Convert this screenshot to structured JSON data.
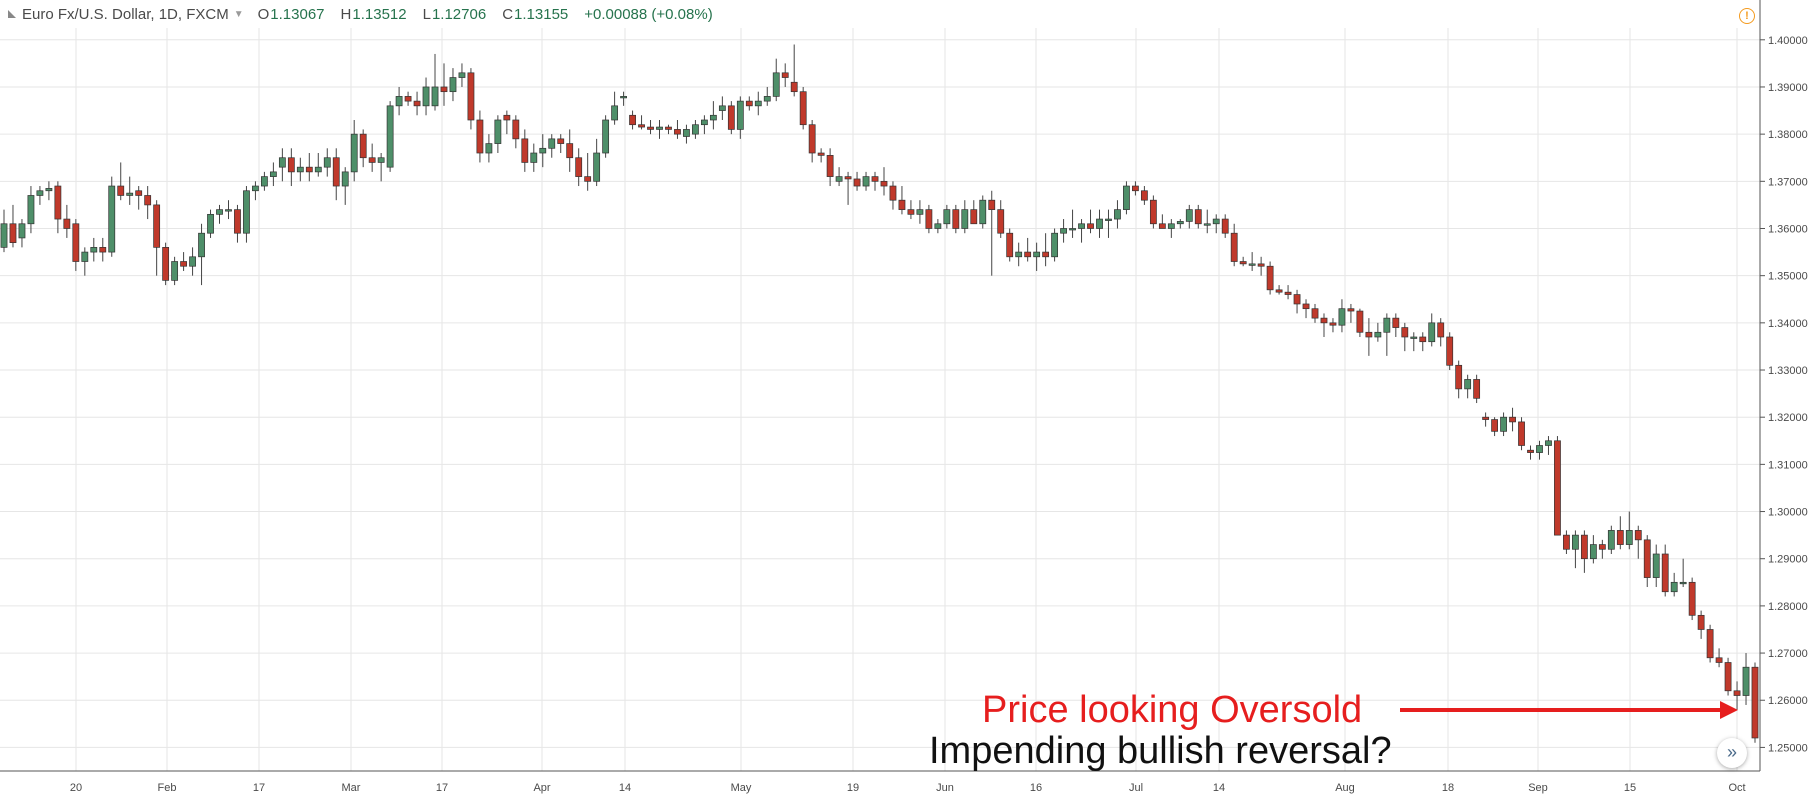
{
  "legend": {
    "symbol": "Euro Fx/U.S. Dollar, 1D, FXCM",
    "open_label": "O",
    "open": "1.13067",
    "high_label": "H",
    "high": "1.13512",
    "low_label": "L",
    "low": "1.12706",
    "close_label": "C",
    "close": "1.13155",
    "change": "+0.00088 (+0.08%)"
  },
  "icons": {
    "symbol": "triangle-icon",
    "alert": "alert-icon",
    "scroll": "double-chevron-right-icon"
  },
  "alert_glyph": "!",
  "scroll_glyph": "»",
  "colors": {
    "up": "#4e8f69",
    "down": "#c0392b",
    "annotation_red": "#e61e1e",
    "annotation_black": "#111111",
    "grid": "#e6e6e6"
  },
  "annotation": {
    "line1": "Price looking Oversold",
    "line2": "Impending bullish reversal?"
  },
  "chart_data": {
    "type": "candlestick",
    "ylim": [
      1.245,
      1.4025
    ],
    "y_ticks": [
      "1.40000",
      "1.39000",
      "1.38000",
      "1.37000",
      "1.36000",
      "1.35000",
      "1.34000",
      "1.33000",
      "1.32000",
      "1.31000",
      "1.30000",
      "1.29000",
      "1.28000",
      "1.27000",
      "1.26000",
      "1.25000"
    ],
    "x_tick_labels": [
      "20",
      "Feb",
      "17",
      "Mar",
      "17",
      "Apr",
      "14",
      "May",
      "19",
      "Jun",
      "16",
      "Jul",
      "14",
      "Aug",
      "18",
      "Sep",
      "15",
      "Oct"
    ],
    "grid": true,
    "candles": [
      [
        1.356,
        1.364,
        1.355,
        1.361
      ],
      [
        1.361,
        1.365,
        1.356,
        1.357
      ],
      [
        1.358,
        1.362,
        1.356,
        1.361
      ],
      [
        1.361,
        1.369,
        1.359,
        1.367
      ],
      [
        1.367,
        1.369,
        1.365,
        1.368
      ],
      [
        1.368,
        1.37,
        1.366,
        1.3685
      ],
      [
        1.369,
        1.37,
        1.359,
        1.362
      ],
      [
        1.362,
        1.365,
        1.358,
        1.36
      ],
      [
        1.361,
        1.362,
        1.351,
        1.353
      ],
      [
        1.353,
        1.356,
        1.35,
        1.355
      ],
      [
        1.355,
        1.358,
        1.353,
        1.356
      ],
      [
        1.356,
        1.358,
        1.353,
        1.355
      ],
      [
        1.355,
        1.371,
        1.354,
        1.369
      ],
      [
        1.369,
        1.374,
        1.366,
        1.367
      ],
      [
        1.367,
        1.371,
        1.365,
        1.3675
      ],
      [
        1.368,
        1.369,
        1.364,
        1.367
      ],
      [
        1.367,
        1.369,
        1.362,
        1.365
      ],
      [
        1.365,
        1.366,
        1.35,
        1.356
      ],
      [
        1.356,
        1.357,
        1.348,
        1.349
      ],
      [
        1.349,
        1.354,
        1.348,
        1.353
      ],
      [
        1.353,
        1.355,
        1.351,
        1.352
      ],
      [
        1.352,
        1.356,
        1.35,
        1.354
      ],
      [
        1.354,
        1.361,
        1.348,
        1.359
      ],
      [
        1.359,
        1.364,
        1.358,
        1.363
      ],
      [
        1.363,
        1.365,
        1.361,
        1.364
      ],
      [
        1.364,
        1.366,
        1.362,
        1.364
      ],
      [
        1.364,
        1.365,
        1.357,
        1.359
      ],
      [
        1.359,
        1.369,
        1.357,
        1.368
      ],
      [
        1.368,
        1.37,
        1.366,
        1.369
      ],
      [
        1.369,
        1.372,
        1.368,
        1.371
      ],
      [
        1.371,
        1.374,
        1.369,
        1.372
      ],
      [
        1.373,
        1.377,
        1.37,
        1.375
      ],
      [
        1.375,
        1.377,
        1.369,
        1.372
      ],
      [
        1.372,
        1.375,
        1.37,
        1.373
      ],
      [
        1.373,
        1.376,
        1.37,
        1.372
      ],
      [
        1.372,
        1.376,
        1.371,
        1.373
      ],
      [
        1.373,
        1.377,
        1.371,
        1.375
      ],
      [
        1.375,
        1.377,
        1.366,
        1.369
      ],
      [
        1.369,
        1.373,
        1.365,
        1.372
      ],
      [
        1.372,
        1.383,
        1.37,
        1.38
      ],
      [
        1.38,
        1.381,
        1.373,
        1.375
      ],
      [
        1.375,
        1.378,
        1.372,
        1.374
      ],
      [
        1.374,
        1.376,
        1.37,
        1.375
      ],
      [
        1.373,
        1.387,
        1.372,
        1.386
      ],
      [
        1.386,
        1.39,
        1.384,
        1.388
      ],
      [
        1.388,
        1.389,
        1.386,
        1.387
      ],
      [
        1.387,
        1.389,
        1.384,
        1.386
      ],
      [
        1.386,
        1.392,
        1.384,
        1.39
      ],
      [
        1.386,
        1.397,
        1.385,
        1.39
      ],
      [
        1.39,
        1.395,
        1.386,
        1.389
      ],
      [
        1.389,
        1.394,
        1.387,
        1.392
      ],
      [
        1.392,
        1.395,
        1.39,
        1.393
      ],
      [
        1.393,
        1.394,
        1.381,
        1.383
      ],
      [
        1.383,
        1.385,
        1.374,
        1.376
      ],
      [
        1.376,
        1.38,
        1.374,
        1.378
      ],
      [
        1.378,
        1.384,
        1.376,
        1.383
      ],
      [
        1.384,
        1.385,
        1.38,
        1.383
      ],
      [
        1.383,
        1.384,
        1.377,
        1.379
      ],
      [
        1.379,
        1.381,
        1.372,
        1.374
      ],
      [
        1.374,
        1.378,
        1.372,
        1.376
      ],
      [
        1.376,
        1.38,
        1.373,
        1.377
      ],
      [
        1.377,
        1.38,
        1.375,
        1.379
      ],
      [
        1.379,
        1.38,
        1.376,
        1.378
      ],
      [
        1.378,
        1.381,
        1.372,
        1.375
      ],
      [
        1.375,
        1.377,
        1.369,
        1.371
      ],
      [
        1.371,
        1.376,
        1.368,
        1.37
      ],
      [
        1.37,
        1.379,
        1.369,
        1.376
      ],
      [
        1.376,
        1.384,
        1.375,
        1.383
      ],
      [
        1.383,
        1.389,
        1.382,
        1.386
      ],
      [
        1.388,
        1.389,
        1.386,
        1.388
      ],
      [
        1.384,
        1.385,
        1.381,
        1.382
      ],
      [
        1.382,
        1.384,
        1.381,
        1.3815
      ],
      [
        1.3815,
        1.383,
        1.38,
        1.381
      ],
      [
        1.381,
        1.383,
        1.379,
        1.3815
      ],
      [
        1.3815,
        1.382,
        1.38,
        1.381
      ],
      [
        1.381,
        1.383,
        1.379,
        1.38
      ],
      [
        1.3795,
        1.382,
        1.378,
        1.381
      ],
      [
        1.38,
        1.383,
        1.379,
        1.382
      ],
      [
        1.382,
        1.384,
        1.38,
        1.383
      ],
      [
        1.383,
        1.387,
        1.381,
        1.384
      ],
      [
        1.385,
        1.388,
        1.383,
        1.386
      ],
      [
        1.386,
        1.387,
        1.38,
        1.381
      ],
      [
        1.381,
        1.388,
        1.379,
        1.387
      ],
      [
        1.387,
        1.388,
        1.385,
        1.386
      ],
      [
        1.386,
        1.389,
        1.384,
        1.387
      ],
      [
        1.387,
        1.39,
        1.386,
        1.388
      ],
      [
        1.388,
        1.396,
        1.387,
        1.393
      ],
      [
        1.393,
        1.395,
        1.39,
        1.392
      ],
      [
        1.391,
        1.399,
        1.388,
        1.389
      ],
      [
        1.389,
        1.39,
        1.381,
        1.382
      ],
      [
        1.382,
        1.383,
        1.374,
        1.376
      ],
      [
        1.376,
        1.377,
        1.374,
        1.3755
      ],
      [
        1.3755,
        1.377,
        1.369,
        1.371
      ],
      [
        1.37,
        1.373,
        1.369,
        1.371
      ],
      [
        1.371,
        1.372,
        1.365,
        1.3705
      ],
      [
        1.3705,
        1.372,
        1.368,
        1.369
      ],
      [
        1.369,
        1.372,
        1.368,
        1.371
      ],
      [
        1.371,
        1.372,
        1.368,
        1.37
      ],
      [
        1.37,
        1.373,
        1.367,
        1.369
      ],
      [
        1.369,
        1.37,
        1.364,
        1.366
      ],
      [
        1.366,
        1.369,
        1.363,
        1.364
      ],
      [
        1.364,
        1.366,
        1.362,
        1.363
      ],
      [
        1.363,
        1.366,
        1.361,
        1.364
      ],
      [
        1.364,
        1.365,
        1.359,
        1.36
      ],
      [
        1.36,
        1.362,
        1.359,
        1.361
      ],
      [
        1.361,
        1.365,
        1.36,
        1.364
      ],
      [
        1.364,
        1.365,
        1.359,
        1.36
      ],
      [
        1.36,
        1.366,
        1.359,
        1.364
      ],
      [
        1.364,
        1.366,
        1.361,
        1.361
      ],
      [
        1.361,
        1.367,
        1.36,
        1.366
      ],
      [
        1.366,
        1.368,
        1.35,
        1.364
      ],
      [
        1.364,
        1.366,
        1.358,
        1.359
      ],
      [
        1.359,
        1.36,
        1.353,
        1.354
      ],
      [
        1.354,
        1.357,
        1.352,
        1.355
      ],
      [
        1.355,
        1.358,
        1.353,
        1.354
      ],
      [
        1.354,
        1.357,
        1.351,
        1.355
      ],
      [
        1.355,
        1.359,
        1.352,
        1.354
      ],
      [
        1.354,
        1.36,
        1.353,
        1.359
      ],
      [
        1.359,
        1.362,
        1.357,
        1.36
      ],
      [
        1.36,
        1.364,
        1.358,
        1.36
      ],
      [
        1.36,
        1.362,
        1.357,
        1.361
      ],
      [
        1.361,
        1.364,
        1.359,
        1.36
      ],
      [
        1.36,
        1.364,
        1.358,
        1.362
      ],
      [
        1.362,
        1.364,
        1.358,
        1.362
      ],
      [
        1.362,
        1.366,
        1.36,
        1.364
      ],
      [
        1.364,
        1.37,
        1.363,
        1.369
      ],
      [
        1.369,
        1.37,
        1.367,
        1.368
      ],
      [
        1.368,
        1.369,
        1.365,
        1.366
      ],
      [
        1.366,
        1.367,
        1.36,
        1.361
      ],
      [
        1.361,
        1.363,
        1.36,
        1.36
      ],
      [
        1.36,
        1.362,
        1.358,
        1.361
      ],
      [
        1.361,
        1.362,
        1.36,
        1.3615
      ],
      [
        1.3615,
        1.365,
        1.36,
        1.364
      ],
      [
        1.364,
        1.365,
        1.36,
        1.361
      ],
      [
        1.361,
        1.364,
        1.359,
        1.361
      ],
      [
        1.361,
        1.363,
        1.359,
        1.362
      ],
      [
        1.362,
        1.363,
        1.358,
        1.359
      ],
      [
        1.359,
        1.361,
        1.352,
        1.353
      ],
      [
        1.353,
        1.354,
        1.352,
        1.3525
      ],
      [
        1.3525,
        1.355,
        1.351,
        1.3525
      ],
      [
        1.3525,
        1.354,
        1.35,
        1.352
      ],
      [
        1.352,
        1.353,
        1.346,
        1.347
      ],
      [
        1.347,
        1.348,
        1.346,
        1.3465
      ],
      [
        1.3465,
        1.348,
        1.345,
        1.346
      ],
      [
        1.346,
        1.347,
        1.342,
        1.344
      ],
      [
        1.344,
        1.345,
        1.341,
        1.343
      ],
      [
        1.343,
        1.344,
        1.34,
        1.341
      ],
      [
        1.341,
        1.342,
        1.337,
        1.34
      ],
      [
        1.34,
        1.341,
        1.338,
        1.3395
      ],
      [
        1.3395,
        1.345,
        1.338,
        1.343
      ],
      [
        1.343,
        1.344,
        1.34,
        1.3425
      ],
      [
        1.3425,
        1.343,
        1.337,
        1.338
      ],
      [
        1.338,
        1.341,
        1.333,
        1.337
      ],
      [
        1.337,
        1.34,
        1.336,
        1.338
      ],
      [
        1.338,
        1.342,
        1.333,
        1.341
      ],
      [
        1.341,
        1.342,
        1.337,
        1.339
      ],
      [
        1.339,
        1.34,
        1.334,
        1.337
      ],
      [
        1.337,
        1.338,
        1.334,
        1.337
      ],
      [
        1.337,
        1.338,
        1.334,
        1.336
      ],
      [
        1.336,
        1.342,
        1.335,
        1.34
      ],
      [
        1.34,
        1.341,
        1.335,
        1.337
      ],
      [
        1.337,
        1.338,
        1.33,
        1.331
      ],
      [
        1.331,
        1.332,
        1.324,
        1.326
      ],
      [
        1.326,
        1.329,
        1.324,
        1.328
      ],
      [
        1.328,
        1.329,
        1.323,
        1.324
      ],
      [
        1.32,
        1.321,
        1.318,
        1.3195
      ],
      [
        1.3195,
        1.32,
        1.316,
        1.317
      ],
      [
        1.317,
        1.321,
        1.316,
        1.32
      ],
      [
        1.32,
        1.322,
        1.317,
        1.319
      ],
      [
        1.319,
        1.32,
        1.313,
        1.314
      ],
      [
        1.313,
        1.314,
        1.311,
        1.3125
      ],
      [
        1.3125,
        1.315,
        1.311,
        1.314
      ],
      [
        1.314,
        1.316,
        1.312,
        1.315
      ],
      [
        1.315,
        1.316,
        1.295,
        1.295
      ],
      [
        1.295,
        1.296,
        1.291,
        1.292
      ],
      [
        1.292,
        1.296,
        1.288,
        1.295
      ],
      [
        1.295,
        1.296,
        1.287,
        1.29
      ],
      [
        1.29,
        1.295,
        1.289,
        1.293
      ],
      [
        1.293,
        1.294,
        1.29,
        1.292
      ],
      [
        1.292,
        1.297,
        1.291,
        1.296
      ],
      [
        1.296,
        1.299,
        1.292,
        1.293
      ],
      [
        1.293,
        1.3,
        1.292,
        1.296
      ],
      [
        1.296,
        1.297,
        1.29,
        1.294
      ],
      [
        1.294,
        1.295,
        1.284,
        1.286
      ],
      [
        1.286,
        1.293,
        1.284,
        1.291
      ],
      [
        1.291,
        1.293,
        1.282,
        1.283
      ],
      [
        1.283,
        1.287,
        1.282,
        1.285
      ],
      [
        1.285,
        1.29,
        1.284,
        1.285
      ],
      [
        1.285,
        1.286,
        1.277,
        1.278
      ],
      [
        1.278,
        1.279,
        1.273,
        1.275
      ],
      [
        1.275,
        1.276,
        1.268,
        1.269
      ],
      [
        1.269,
        1.271,
        1.267,
        1.268
      ],
      [
        1.268,
        1.269,
        1.261,
        1.262
      ],
      [
        1.262,
        1.264,
        1.258,
        1.261
      ],
      [
        1.261,
        1.27,
        1.259,
        1.267
      ],
      [
        1.267,
        1.268,
        1.251,
        1.252
      ]
    ]
  }
}
